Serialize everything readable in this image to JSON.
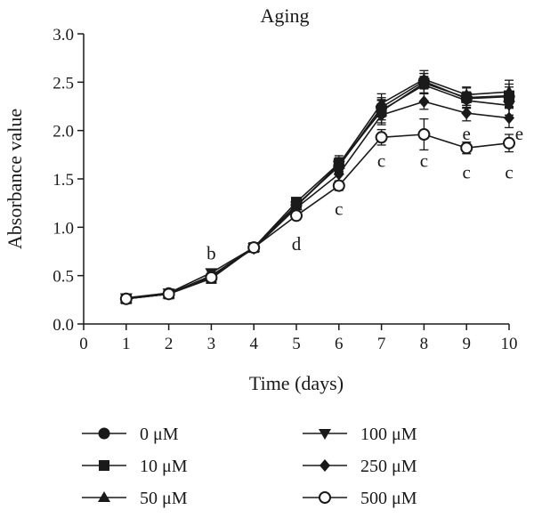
{
  "chart_data": {
    "type": "line",
    "title": "Aging",
    "xlabel": "Time (days)",
    "ylabel": "Absorbance value",
    "xlim": [
      0,
      10
    ],
    "ylim": [
      0.0,
      3.0
    ],
    "x_ticks": [
      "0",
      "1",
      "2",
      "3",
      "4",
      "5",
      "6",
      "7",
      "8",
      "9",
      "10"
    ],
    "y_ticks": [
      "0.0",
      "0.5",
      "1.0",
      "1.5",
      "2.0",
      "2.5",
      "3.0"
    ],
    "grid": false,
    "legend_position": "bottom",
    "x": [
      1,
      2,
      3,
      4,
      5,
      6,
      7,
      8,
      9,
      10
    ],
    "series": [
      {
        "name": "0 μM",
        "marker": "circle-filled",
        "values": [
          0.26,
          0.32,
          0.48,
          0.79,
          1.23,
          1.63,
          2.24,
          2.51,
          2.33,
          2.35
        ],
        "errors": [
          0.02,
          0.02,
          0.03,
          0.02,
          0.04,
          0.07,
          0.1,
          0.08,
          0.07,
          0.1
        ]
      },
      {
        "name": "10 μM",
        "marker": "square-filled",
        "values": [
          0.26,
          0.31,
          0.47,
          0.79,
          1.26,
          1.66,
          2.2,
          2.49,
          2.34,
          2.36
        ],
        "errors": [
          0.02,
          0.02,
          0.03,
          0.02,
          0.04,
          0.08,
          0.12,
          0.1,
          0.1,
          0.12
        ]
      },
      {
        "name": "50 μM",
        "marker": "triangle-up-filled",
        "values": [
          0.26,
          0.31,
          0.5,
          0.79,
          1.22,
          1.65,
          2.28,
          2.53,
          2.37,
          2.4
        ],
        "errors": [
          0.02,
          0.02,
          0.03,
          0.02,
          0.04,
          0.07,
          0.1,
          0.09,
          0.08,
          0.12
        ]
      },
      {
        "name": "100 μM",
        "marker": "triangle-down-filled",
        "values": [
          0.27,
          0.32,
          0.53,
          0.79,
          1.22,
          1.64,
          2.21,
          2.47,
          2.31,
          2.26
        ],
        "errors": [
          0.02,
          0.02,
          0.03,
          0.02,
          0.04,
          0.07,
          0.1,
          0.09,
          0.08,
          0.1
        ]
      },
      {
        "name": "250 μM",
        "marker": "diamond-filled",
        "values": [
          0.26,
          0.31,
          0.5,
          0.78,
          1.2,
          1.55,
          2.16,
          2.3,
          2.18,
          2.13
        ],
        "errors": [
          0.02,
          0.02,
          0.03,
          0.02,
          0.04,
          0.07,
          0.1,
          0.08,
          0.08,
          0.1
        ]
      },
      {
        "name": "500 μM",
        "marker": "circle-open",
        "values": [
          0.26,
          0.31,
          0.48,
          0.79,
          1.12,
          1.43,
          1.93,
          1.96,
          1.82,
          1.87
        ],
        "errors": [
          0.02,
          0.02,
          0.03,
          0.02,
          0.04,
          0.05,
          0.08,
          0.16,
          0.06,
          0.09
        ]
      }
    ],
    "annotations": [
      {
        "text": "b",
        "x": 3,
        "y": 0.73
      },
      {
        "text": "d",
        "x": 5,
        "y": 0.83
      },
      {
        "text": "c",
        "x": 6,
        "y": 1.19
      },
      {
        "text": "c",
        "x": 7,
        "y": 1.69
      },
      {
        "text": "c",
        "x": 8,
        "y": 1.69
      },
      {
        "text": "c",
        "x": 9,
        "y": 1.57
      },
      {
        "text": "c",
        "x": 10,
        "y": 1.57
      },
      {
        "text": "e",
        "x": 9,
        "y": 1.97
      },
      {
        "text": "e",
        "x": 10.24,
        "y": 1.97
      }
    ]
  }
}
